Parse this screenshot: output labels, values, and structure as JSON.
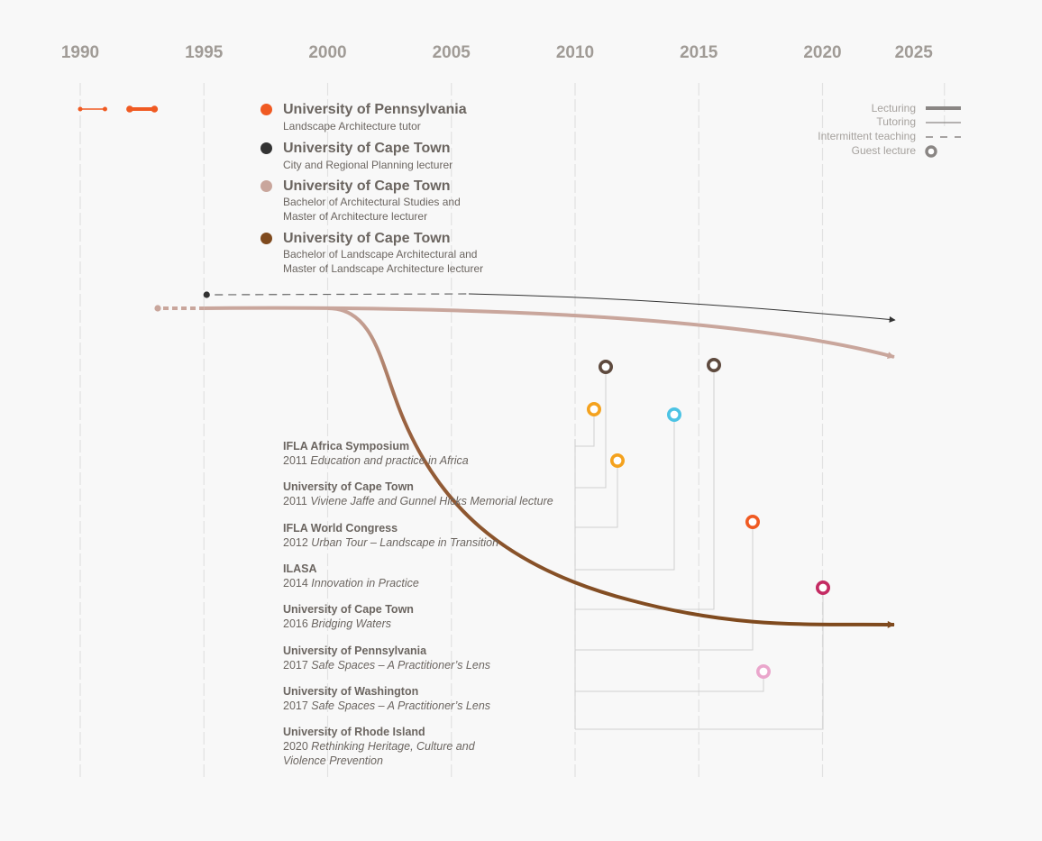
{
  "chart_data": {
    "type": "timeline",
    "title": "",
    "x_axis": {
      "range": [
        1990,
        2025
      ],
      "ticks": [
        1990,
        1995,
        2000,
        2005,
        2010,
        2015,
        2020,
        2025
      ],
      "grid": true
    },
    "legend": {
      "placement": "top-right",
      "entries": [
        {
          "label": "Lecturing",
          "style": "thick-line"
        },
        {
          "label": "Tutoring",
          "style": "thin-line"
        },
        {
          "label": "Intermittent teaching",
          "style": "dashed-line"
        },
        {
          "label": "Guest lecture",
          "style": "ring"
        }
      ]
    },
    "institutions": [
      {
        "name": "University of Pennsylvania",
        "role": "Landscape Architecture tutor",
        "color": "#f05a22"
      },
      {
        "name": "University of Cape Town",
        "role": "City and Regional Planning lecturer",
        "color": "#333333"
      },
      {
        "name": "University of Cape Town",
        "role_lines": [
          "Bachelor of Architectural Studies and",
          "Master of Architecture lecturer"
        ],
        "color": "#c9a69c"
      },
      {
        "name": "University of Cape Town",
        "role_lines": [
          "Bachelor of Landscape Architectural and",
          "Master of Landscape Architecture lecturer"
        ],
        "color": "#7f4a1e"
      }
    ],
    "periods": [
      {
        "institution": 0,
        "type": "tutoring",
        "start": 1990,
        "end": 1991
      },
      {
        "institution": 0,
        "type": "lecturing",
        "start": 1992,
        "end": 1993
      },
      {
        "institution": 1,
        "type": "intermittent",
        "start": 1995,
        "end": 2006,
        "continues_to": 2023,
        "ongoing": true
      },
      {
        "institution": 2,
        "type": "intermittent",
        "start": 1993,
        "end": 1995
      },
      {
        "institution": 2,
        "type": "lecturing",
        "start": 1995,
        "end": 2023,
        "ongoing": true
      },
      {
        "institution": 3,
        "type": "lecturing",
        "start": 2000,
        "end": 2023,
        "ongoing": true
      }
    ],
    "guest_lectures": [
      {
        "host": "IFLA Africa Symposium",
        "year": 2011,
        "title": "Education and practice in Africa",
        "color": "#f4a21e"
      },
      {
        "host": "University of Cape Town",
        "year": 2011,
        "title": "Viviene Jaffe and Gunnel Hicks Memorial lecture",
        "color": "#5e4a3e"
      },
      {
        "host": "IFLA World Congress",
        "year": 2012,
        "title": "Urban Tour – Landscape in Transition",
        "color": "#f4a21e"
      },
      {
        "host": "ILASA",
        "year": 2014,
        "title": "Innovation in Practice",
        "color": "#4cc3e4"
      },
      {
        "host": "University of Cape Town",
        "year": 2016,
        "title": "Bridging Waters",
        "color": "#5e4a3e"
      },
      {
        "host": "University of Pennsylvania",
        "year": 2017,
        "title": "Safe Spaces – A Practitioner’s Lens",
        "color": "#f05a22"
      },
      {
        "host": "University of Washington",
        "year": 2017,
        "title": "Safe Spaces – A Practitioner’s Lens",
        "color": "#eaa6cc"
      },
      {
        "host": "University of Rhode Island",
        "year": 2020,
        "title_lines": [
          "Rethinking Heritage, Culture and",
          "Violence Prevention"
        ],
        "color": "#c42b63"
      }
    ]
  }
}
